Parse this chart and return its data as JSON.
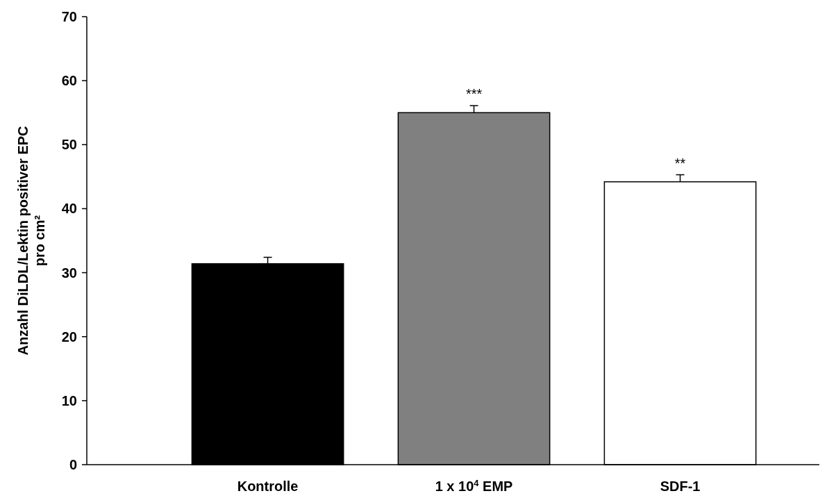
{
  "chart_data": {
    "type": "bar",
    "ylabel": "Anzahl DiLDL/Lektin positiver EPC\npro cm²",
    "categories": [
      "Kontrolle",
      "1 x 10$^{4}$ EMP",
      "SDF-1"
    ],
    "values": [
      31.4,
      55.0,
      44.2
    ],
    "colors": [
      "#000000",
      "#808080",
      "#ffffff"
    ],
    "errors": [
      [
        31.4,
        32.4
      ],
      [
        55.0,
        56.1
      ],
      [
        44.2,
        45.3
      ]
    ],
    "ylim": [
      0,
      70
    ],
    "yticks": [
      0,
      10,
      20,
      30,
      40,
      50,
      60,
      70
    ],
    "annotations": [
      {
        "text": "***",
        "x": "1 x 10$^{4}$ EMP",
        "y": 56.1
      },
      {
        "text": "**",
        "x": "SDF-1",
        "y": 45.3
      }
    ],
    "grid": false
  }
}
